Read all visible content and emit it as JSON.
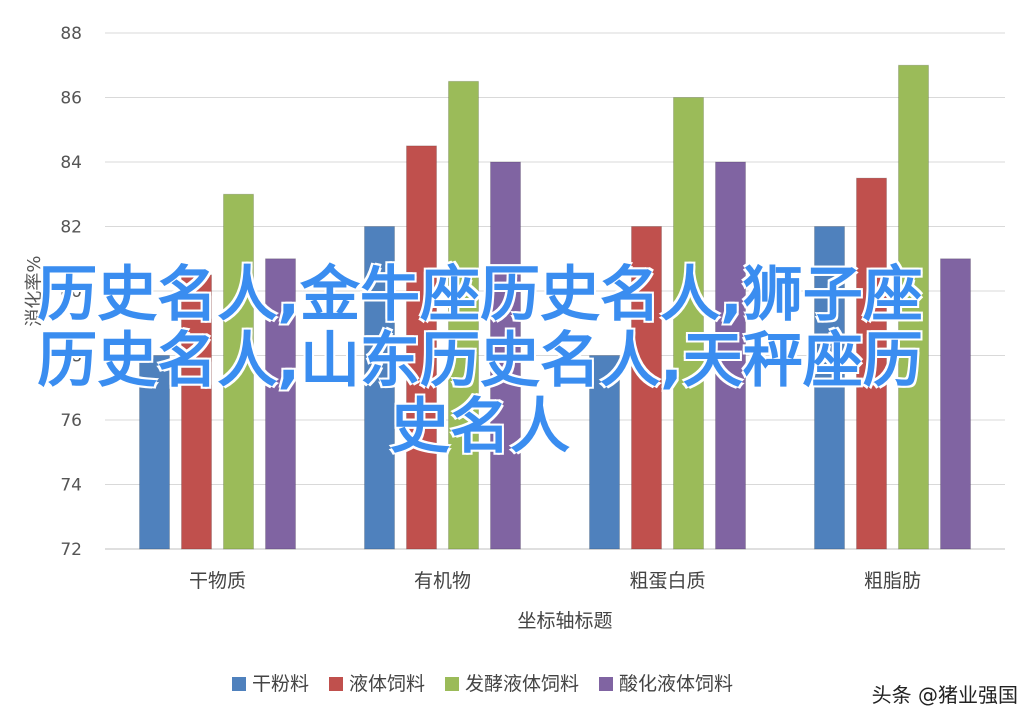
{
  "chart_data": {
    "type": "bar",
    "categories": [
      "干物质",
      "有机物",
      "粗蛋白质",
      "粗脂肪"
    ],
    "series": [
      {
        "name": "干粉料",
        "color": "#4f81bd",
        "values": [
          78,
          82,
          78,
          82
        ]
      },
      {
        "name": "液体饲料",
        "color": "#c0504d",
        "values": [
          80.5,
          84.5,
          82,
          83.5
        ]
      },
      {
        "name": "发酵液体饲料",
        "color": "#9bbb59",
        "values": [
          83,
          86.5,
          86,
          87
        ]
      },
      {
        "name": "酸化液体饲料",
        "color": "#8064a2",
        "values": [
          81,
          84,
          84,
          81
        ]
      }
    ],
    "xlabel": "坐标轴标题",
    "ylabel": "消化率%",
    "ylim": [
      72,
      88
    ],
    "yticks": [
      "72",
      "74",
      "76",
      "78",
      "80",
      "82",
      "84",
      "86",
      "88"
    ],
    "grid": true,
    "legend_position": "bottom"
  },
  "overlay_text": "历史名人,金牛座历史名人,狮子座历史名人,山东历史名人,天秤座历史名人",
  "watermark": "头条 @猪业强国"
}
